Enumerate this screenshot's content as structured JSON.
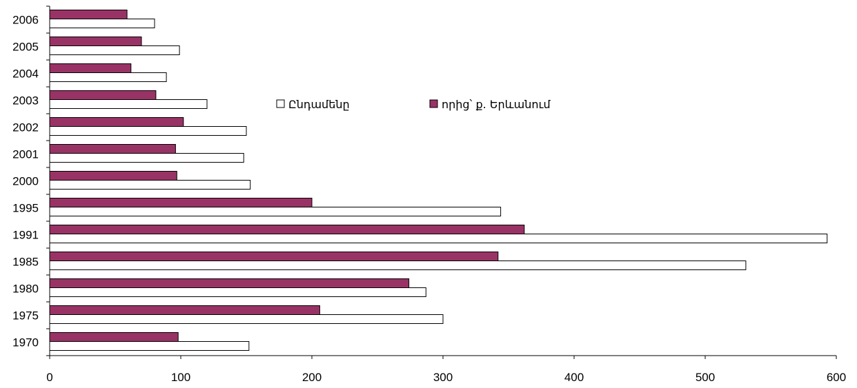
{
  "chart_data": {
    "type": "bar",
    "orientation": "horizontal",
    "categories": [
      "1970",
      "1975",
      "1980",
      "1985",
      "1991",
      "1995",
      "2000",
      "2001",
      "2002",
      "2003",
      "2004",
      "2005",
      "2006"
    ],
    "series": [
      {
        "name": "Ընդամենը",
        "color": "#ffffff",
        "values": [
          152,
          300,
          287,
          531,
          593,
          344,
          153,
          148,
          150,
          120,
          89,
          99,
          80
        ]
      },
      {
        "name": "որից՝ ք. Երևանում",
        "color": "#993366",
        "values": [
          98,
          206,
          274,
          342,
          362,
          200,
          97,
          96,
          102,
          81,
          62,
          70,
          59
        ]
      }
    ],
    "xlim": [
      0,
      600
    ],
    "xticks": [
      "0",
      "100",
      "200",
      "300",
      "400",
      "500",
      "600"
    ],
    "grid": false,
    "legend_position": "top-center"
  }
}
